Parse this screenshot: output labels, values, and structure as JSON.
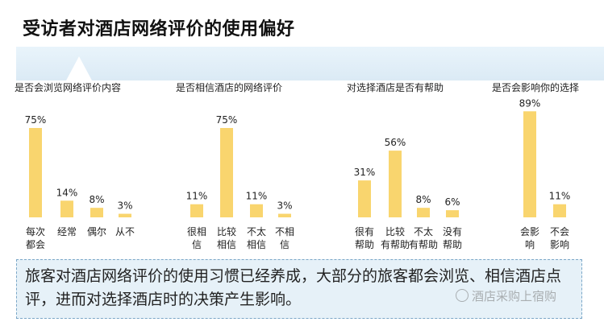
{
  "title": "受访者对酒店网络评价的使用偏好",
  "colors": {
    "bar": "#f9d56e",
    "panel": "#e6f1f8",
    "title_bar": "#dbeaf5"
  },
  "footer_text": "旅客对酒店网络评价的使用习惯已经养成，大部分的旅客都会浏览、相信酒店点评，进而对选择酒店时的决策产生影响。",
  "watermark": "酒店采购上宿购",
  "chart_data": [
    {
      "type": "bar",
      "title": "是否会浏览网络评价内容",
      "categories": [
        "每次都会",
        "经常",
        "偶尔",
        "从不"
      ],
      "values": [
        75,
        14,
        8,
        3
      ],
      "value_labels": [
        "75%",
        "14%",
        "8%",
        "3%"
      ],
      "ylim": [
        0,
        100
      ],
      "grid": false
    },
    {
      "type": "bar",
      "title": "是否相信酒店的网络评价",
      "categories": [
        "很相信",
        "比较相信",
        "不太相信",
        "不相信"
      ],
      "values": [
        11,
        75,
        11,
        3
      ],
      "value_labels": [
        "11%",
        "75%",
        "11%",
        "3%"
      ],
      "ylim": [
        0,
        100
      ],
      "grid": false
    },
    {
      "type": "bar",
      "title": "对选择酒店是否有帮助",
      "categories": [
        "很有帮助",
        "比较有帮助",
        "不太有帮助",
        "没有帮助"
      ],
      "values": [
        31,
        56,
        8,
        6
      ],
      "value_labels": [
        "31%",
        "56%",
        "8%",
        "6%"
      ],
      "ylim": [
        0,
        100
      ],
      "grid": false
    },
    {
      "type": "bar",
      "title": "是否会影响你的选择",
      "categories": [
        "会影响",
        "不会影响"
      ],
      "values": [
        89,
        11
      ],
      "value_labels": [
        "89%",
        "11%"
      ],
      "ylim": [
        0,
        100
      ],
      "grid": false
    }
  ]
}
